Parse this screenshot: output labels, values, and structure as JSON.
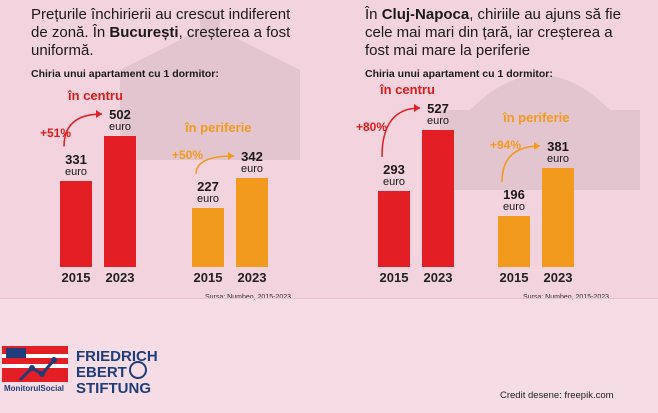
{
  "left": {
    "headline_parts": [
      "Prețurile închirierii au crescut indiferent de zonă. În ",
      "București",
      ", creșterea a fost uniformă."
    ],
    "subhead": "Chiria unui apartament cu 1 dormitor:",
    "center_label": "în centru",
    "periphery_label": "în periferie",
    "center_change": "+51%",
    "periphery_change": "+50%",
    "source": "Sursa: Numbeo, 2015-2023"
  },
  "right": {
    "headline_parts": [
      "În ",
      "Cluj-Napoca",
      ", chiriile au ajuns să fie cele mai mari din țară, iar creșterea a fost mai mare la periferie"
    ],
    "subhead": "Chiria unui apartament cu 1 dormitor:",
    "center_label": "în centru",
    "periphery_label": "în periferie",
    "center_change": "+80%",
    "periphery_change": "+94%",
    "source": "Sursa: Numbeo, 2015-2023"
  },
  "unit": "euro",
  "years": [
    "2015",
    "2023"
  ],
  "footer": {
    "logo_monitorul": "MonitorulSocial",
    "logo_fes": [
      "FRIEDRICH",
      "EBERT",
      "STIFTUNG"
    ],
    "credit": "Credit desene: freepik.com"
  },
  "colors": {
    "center": "#e31e24",
    "periphery": "#f29a1e",
    "background": "#f6dde5"
  },
  "chart_data": [
    {
      "type": "bar",
      "title": "București",
      "ylabel": "Chiria unui apartament cu 1 dormitor:",
      "categories": [
        "2015",
        "2023"
      ],
      "series": [
        {
          "name": "în centru",
          "values": [
            331,
            502
          ]
        },
        {
          "name": "în periferie",
          "values": [
            227,
            342
          ]
        }
      ]
    },
    {
      "type": "bar",
      "title": "Cluj-Napoca",
      "ylabel": "Chiria unui apartament cu 1 dormitor:",
      "categories": [
        "2015",
        "2023"
      ],
      "series": [
        {
          "name": "în centru",
          "values": [
            293,
            527
          ]
        },
        {
          "name": "în periferie",
          "values": [
            196,
            381
          ]
        }
      ]
    }
  ]
}
